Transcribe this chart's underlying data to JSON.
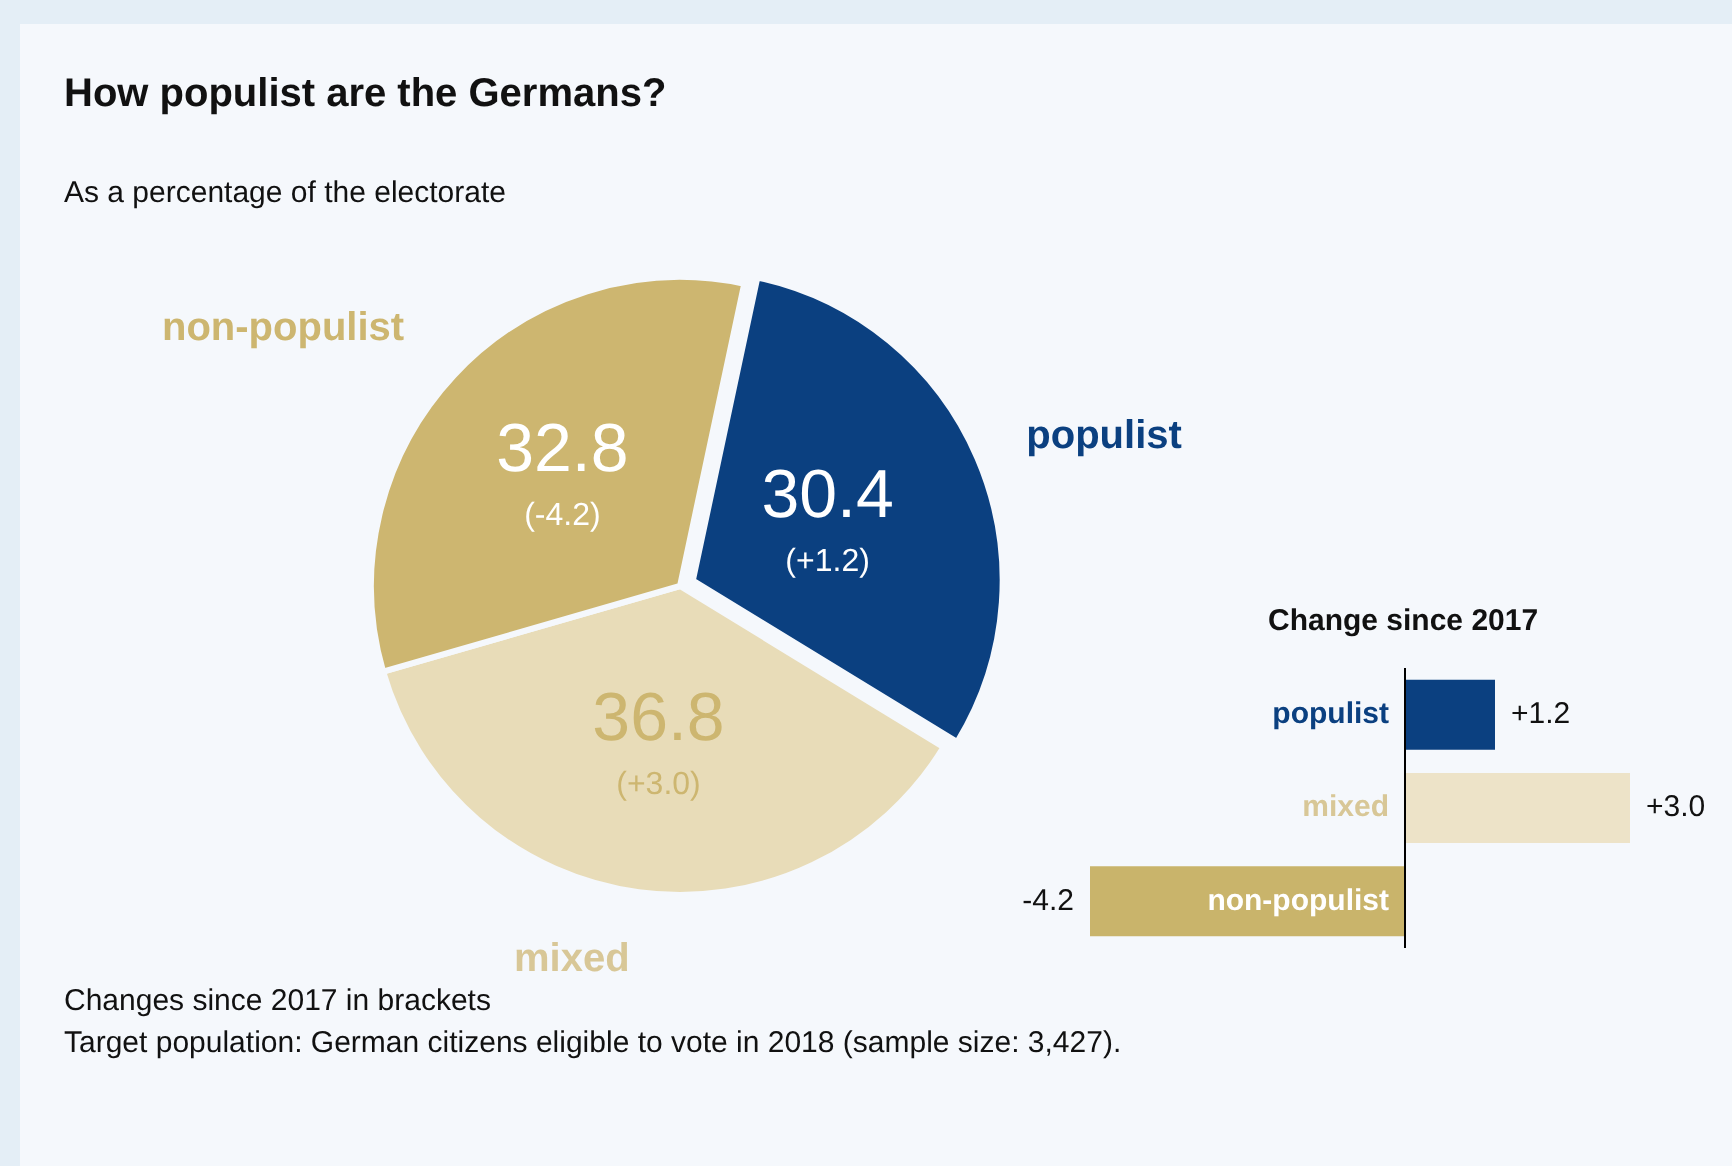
{
  "chart_data": [
    {
      "type": "pie",
      "title": "How populist are the Germans?",
      "subtitle": "As a percentage of the electorate",
      "categories": [
        "populist",
        "mixed",
        "non-populist"
      ],
      "values": [
        30.4,
        36.8,
        32.8
      ],
      "colors": [
        "#0b4080",
        "#e8dcb8",
        "#cdb670"
      ],
      "value_labels": [
        "30.4\n(+1.2)",
        "36.8\n(+3.0)",
        "32.8\n(-4.2)"
      ],
      "legend": false,
      "annotations": [
        "Changes since 2017 in brackets",
        "Target population: German citizens eligible to vote in 2018 (sample size: 3,427)."
      ]
    },
    {
      "type": "bar",
      "orientation": "horizontal",
      "title": "Change since 2017",
      "categories": [
        "populist",
        "mixed",
        "non-populist"
      ],
      "values": [
        1.2,
        3.0,
        -4.2
      ],
      "colors": [
        "#0b4080",
        "#ede3c8",
        "#c9b46b"
      ],
      "value_labels": [
        "+1.2",
        "+3.0",
        "-4.2"
      ],
      "legend": false
    }
  ]
}
